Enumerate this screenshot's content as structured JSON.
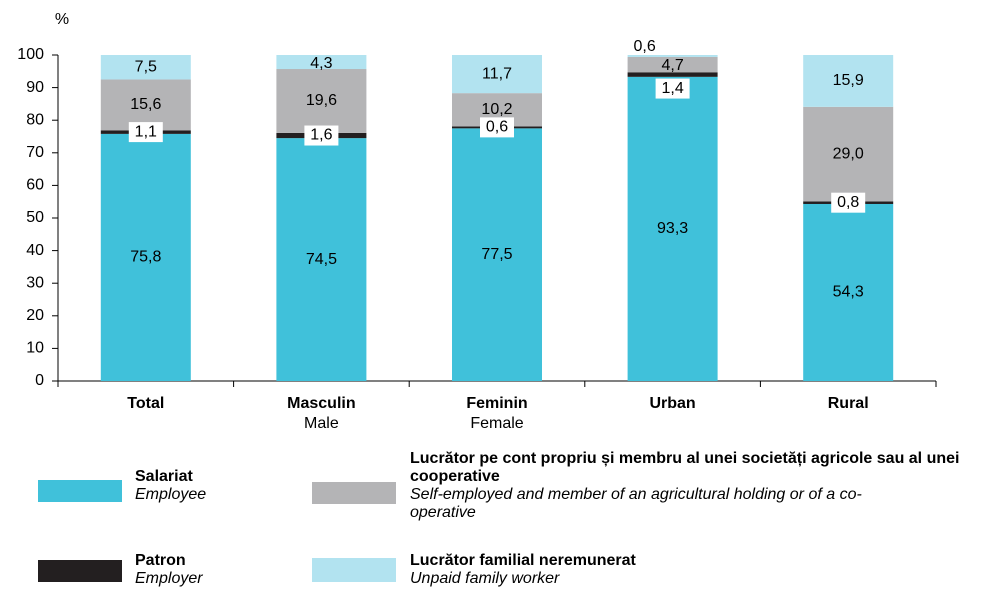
{
  "chart_data": {
    "type": "stacked_bar",
    "y_label": "%",
    "categories": [
      "Total",
      "Masculin",
      "Feminin",
      "Urban",
      "Rural"
    ],
    "categories_en": [
      null,
      "Male",
      "Female",
      null,
      null
    ],
    "ylim": [
      0,
      100
    ],
    "yticks": [
      0,
      10,
      20,
      30,
      40,
      50,
      60,
      70,
      80,
      90,
      100
    ],
    "series": [
      {
        "name": "Salariat",
        "name_en": "Employee",
        "color": "#40c1da",
        "values": [
          75.8,
          74.5,
          77.5,
          93.3,
          54.3
        ],
        "value_labels": [
          "75,8",
          "74,5",
          "77,5",
          "93,3",
          "54,3"
        ]
      },
      {
        "name": "Patron",
        "name_en": "Employer",
        "color": "#231f20",
        "values": [
          1.1,
          1.6,
          0.6,
          1.4,
          0.8
        ],
        "value_labels": [
          "1,1",
          "1,6",
          "0,6",
          "1,4",
          "0,8"
        ]
      },
      {
        "name": "Lucrător pe cont propriu și membru al unei societăți agricole sau al unei cooperative",
        "name_en": "Self-employed and member of an agricultural holding or of a co-operative",
        "color": "#b4b4b6",
        "values": [
          15.6,
          19.6,
          10.2,
          4.7,
          29.0
        ],
        "value_labels": [
          "15,6",
          "19,6",
          "10,2",
          "4,7",
          "29,0"
        ]
      },
      {
        "name": "Lucrător familial neremunerat",
        "name_en": "Unpaid family worker",
        "color": "#b2e3f0",
        "values": [
          7.5,
          4.3,
          11.7,
          0.6,
          15.9
        ],
        "value_labels": [
          "7,5",
          "4,3",
          "11,7",
          "0,6",
          "15,9"
        ]
      }
    ]
  }
}
